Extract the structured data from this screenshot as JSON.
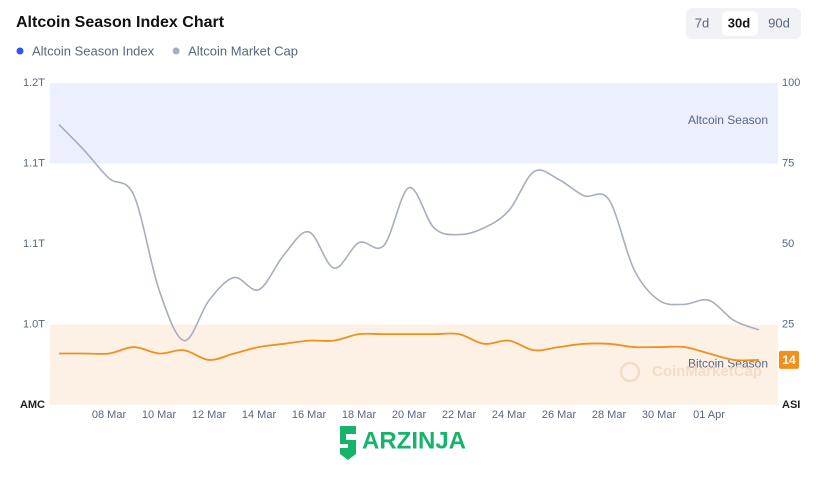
{
  "chart_data": {
    "type": "line",
    "title": "Altcoin Season Index Chart",
    "tabs": [
      "7d",
      "30d",
      "90d"
    ],
    "active_tab": 1,
    "categories": [
      null,
      null,
      "08 Mar",
      null,
      "10 Mar",
      null,
      "12 Mar",
      null,
      "14 Mar",
      null,
      "16 Mar",
      null,
      "18 Mar",
      null,
      "20 Mar",
      null,
      "22 Mar",
      null,
      "24 Mar",
      null,
      "26 Mar",
      null,
      "28 Mar",
      null,
      "30 Mar",
      null,
      "01 Apr",
      null,
      null
    ],
    "series": [
      {
        "name": "Altcoin Season Index",
        "color": "#f0901e",
        "legend_color": "#3156e6",
        "axis": "y2",
        "values": [
          16,
          16,
          16,
          18,
          16,
          17,
          14,
          16,
          18,
          19,
          20,
          20,
          22,
          22,
          22,
          22,
          22,
          19,
          20,
          17,
          18,
          19,
          19,
          18,
          18,
          18,
          16,
          14,
          14
        ]
      },
      {
        "name": "Altcoin Market Cap",
        "color": "#a6aebf",
        "legend_color": "#a6aebf",
        "axis": "y",
        "values": [
          1.169,
          1.15,
          1.129,
          1.116,
          1.046,
          1.008,
          1.038,
          1.055,
          1.046,
          1.072,
          1.089,
          1.062,
          1.081,
          1.079,
          1.122,
          1.092,
          1.087,
          1.092,
          1.105,
          1.134,
          1.128,
          1.116,
          1.113,
          1.061,
          1.038,
          1.035,
          1.038,
          1.023,
          1.016
        ]
      }
    ],
    "ylabel": "AMC",
    "y2label": "ASI",
    "ylim": [
      0.96,
      1.2
    ],
    "yticks": [
      {
        "value": 1.2,
        "label": "1.2T"
      },
      {
        "value": 1.14,
        "label": "1.1T"
      },
      {
        "value": 1.08,
        "label": "1.1T"
      },
      {
        "value": 1.02,
        "label": "1.0T"
      }
    ],
    "y2lim": [
      0,
      100
    ],
    "y2ticks": [
      100,
      75,
      50,
      25
    ],
    "bands": [
      {
        "label": "Altcoin Season",
        "range": [
          75,
          100
        ],
        "color": "#eceffd"
      },
      {
        "label": "Bitcoin Season",
        "range": [
          0,
          25
        ],
        "color": "#fdf1e6"
      }
    ],
    "watermark": "CoinMarketCap",
    "brand": "ARZINJA"
  }
}
